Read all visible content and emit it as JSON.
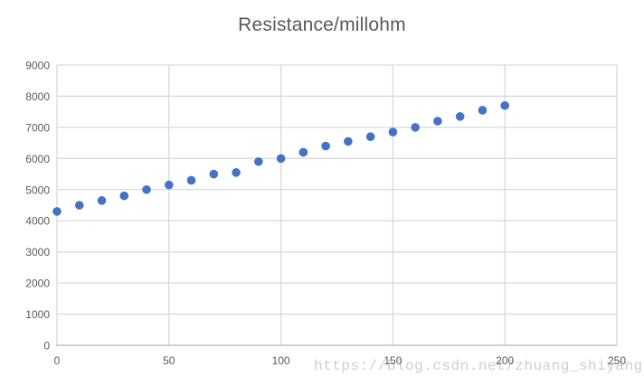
{
  "title": "Resistance/millohm",
  "watermark": "https://blog.csdn.net/zhuang_shiyang",
  "colors": {
    "marker": "#4472C4",
    "gridline": "#D9D9D9",
    "axis_line": "#BFBFBF",
    "title_text": "#595959",
    "tick_text": "#595959",
    "watermark_text": "#C6C6C6",
    "background": "#FFFFFF"
  },
  "chart_data": {
    "type": "scatter",
    "title": "Resistance/millohm",
    "xlabel": "",
    "ylabel": "",
    "xlim": [
      0,
      250
    ],
    "ylim": [
      0,
      9000
    ],
    "x_ticks": [
      0,
      50,
      100,
      150,
      200,
      250
    ],
    "y_ticks": [
      0,
      1000,
      2000,
      3000,
      4000,
      5000,
      6000,
      7000,
      8000,
      9000
    ],
    "grid": true,
    "legend": false,
    "series": [
      {
        "name": "Resistance/millohm",
        "x": [
          0,
          10,
          20,
          30,
          40,
          50,
          60,
          70,
          80,
          90,
          100,
          110,
          120,
          130,
          140,
          150,
          160,
          170,
          180,
          190,
          200
        ],
        "y": [
          4300,
          4500,
          4650,
          4800,
          5000,
          5150,
          5300,
          5500,
          5550,
          5900,
          6000,
          6200,
          6400,
          6550,
          6700,
          6850,
          7000,
          7200,
          7350,
          7550,
          7700
        ]
      }
    ]
  }
}
